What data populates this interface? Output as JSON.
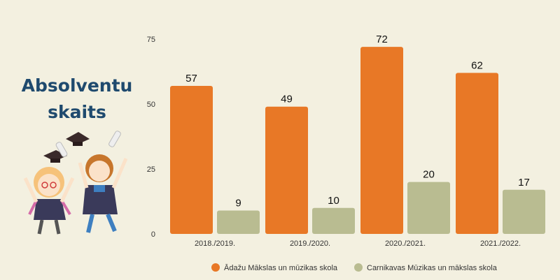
{
  "title": "Absolventu skaits",
  "chart_data": {
    "type": "bar",
    "categories": [
      "2018./2019.",
      "2019./2020.",
      "2020./2021.",
      "2021./2022."
    ],
    "series": [
      {
        "name": "Ādažu Mākslas un mūzikas skola",
        "values": [
          57,
          49,
          72,
          62
        ],
        "color": "#e87826"
      },
      {
        "name": "Carnikavas Mūzikas un mākslas skola",
        "values": [
          9,
          10,
          20,
          17
        ],
        "color": "#b9bc91"
      }
    ],
    "yticks": [
      0,
      25,
      50,
      75
    ],
    "ylim": [
      0,
      75
    ],
    "grid": false,
    "legend": "bottom"
  }
}
